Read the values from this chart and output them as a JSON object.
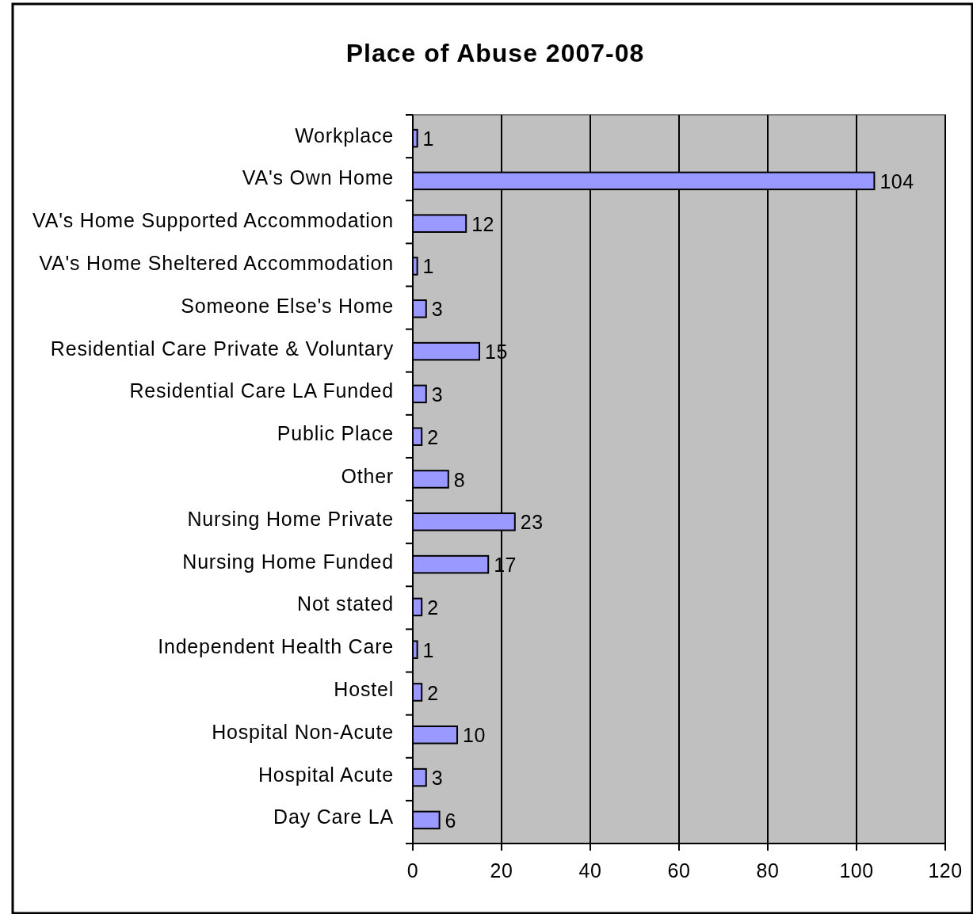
{
  "chart_data": {
    "type": "bar",
    "orientation": "horizontal",
    "title": "Place of Abuse 2007-08",
    "categories": [
      "Workplace",
      "VA's Own Home",
      "VA's Home Supported Accommodation",
      "VA's Home Sheltered Accommodation",
      "Someone Else's Home",
      "Residential Care Private & Voluntary",
      "Residential Care LA Funded",
      "Public Place",
      "Other",
      "Nursing Home Private",
      "Nursing Home Funded",
      "Not stated",
      "Independent Health Care",
      "Hostel",
      "Hospital Non-Acute",
      "Hospital Acute",
      "Day Care LA"
    ],
    "values": [
      1,
      104,
      12,
      1,
      3,
      15,
      3,
      2,
      8,
      23,
      17,
      2,
      1,
      2,
      10,
      3,
      6
    ],
    "color": "#9999ff",
    "xlim": [
      0,
      120
    ],
    "xticks": [
      0,
      20,
      40,
      60,
      80,
      100,
      120
    ],
    "grid": "x",
    "data_labels": true
  }
}
